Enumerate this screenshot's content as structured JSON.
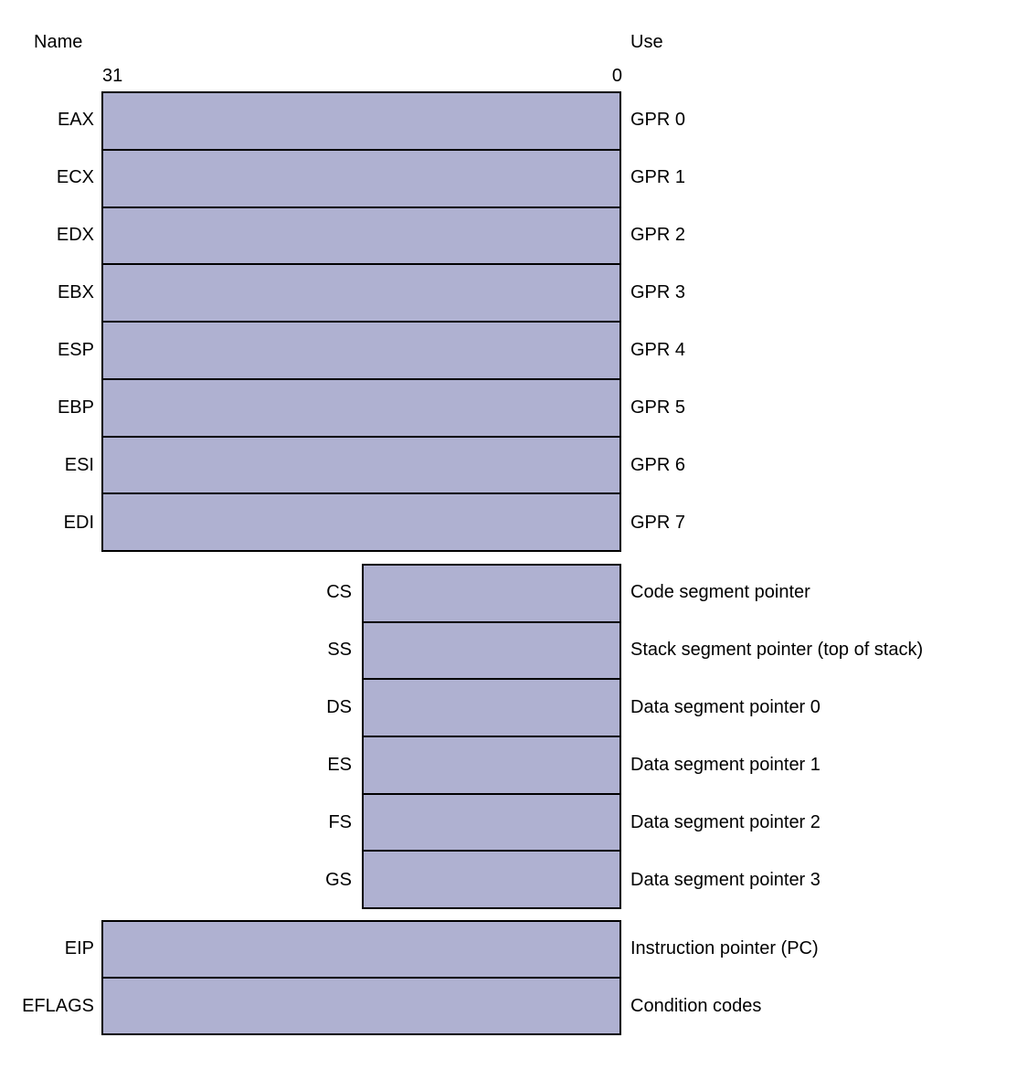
{
  "columns": {
    "name": "Name",
    "use": "Use"
  },
  "bits": {
    "high": "31",
    "low": "0"
  },
  "colors": {
    "register_fill": "#afb1d1",
    "border": "#000000"
  },
  "gpr_registers": [
    {
      "name": "EAX",
      "use": "GPR 0"
    },
    {
      "name": "ECX",
      "use": "GPR 1"
    },
    {
      "name": "EDX",
      "use": "GPR 2"
    },
    {
      "name": "EBX",
      "use": "GPR 3"
    },
    {
      "name": "ESP",
      "use": "GPR 4"
    },
    {
      "name": "EBP",
      "use": "GPR 5"
    },
    {
      "name": "ESI",
      "use": "GPR 6"
    },
    {
      "name": "EDI",
      "use": "GPR 7"
    }
  ],
  "segment_registers": [
    {
      "name": "CS",
      "use": "Code segment pointer"
    },
    {
      "name": "SS",
      "use": "Stack segment pointer (top of stack)"
    },
    {
      "name": "DS",
      "use": "Data segment pointer 0"
    },
    {
      "name": "ES",
      "use": "Data segment pointer 1"
    },
    {
      "name": "FS",
      "use": "Data segment pointer 2"
    },
    {
      "name": "GS",
      "use": "Data segment pointer 3"
    }
  ],
  "special_registers": [
    {
      "name": "EIP",
      "use": "Instruction pointer (PC)"
    },
    {
      "name": "EFLAGS",
      "use": "Condition codes"
    }
  ]
}
